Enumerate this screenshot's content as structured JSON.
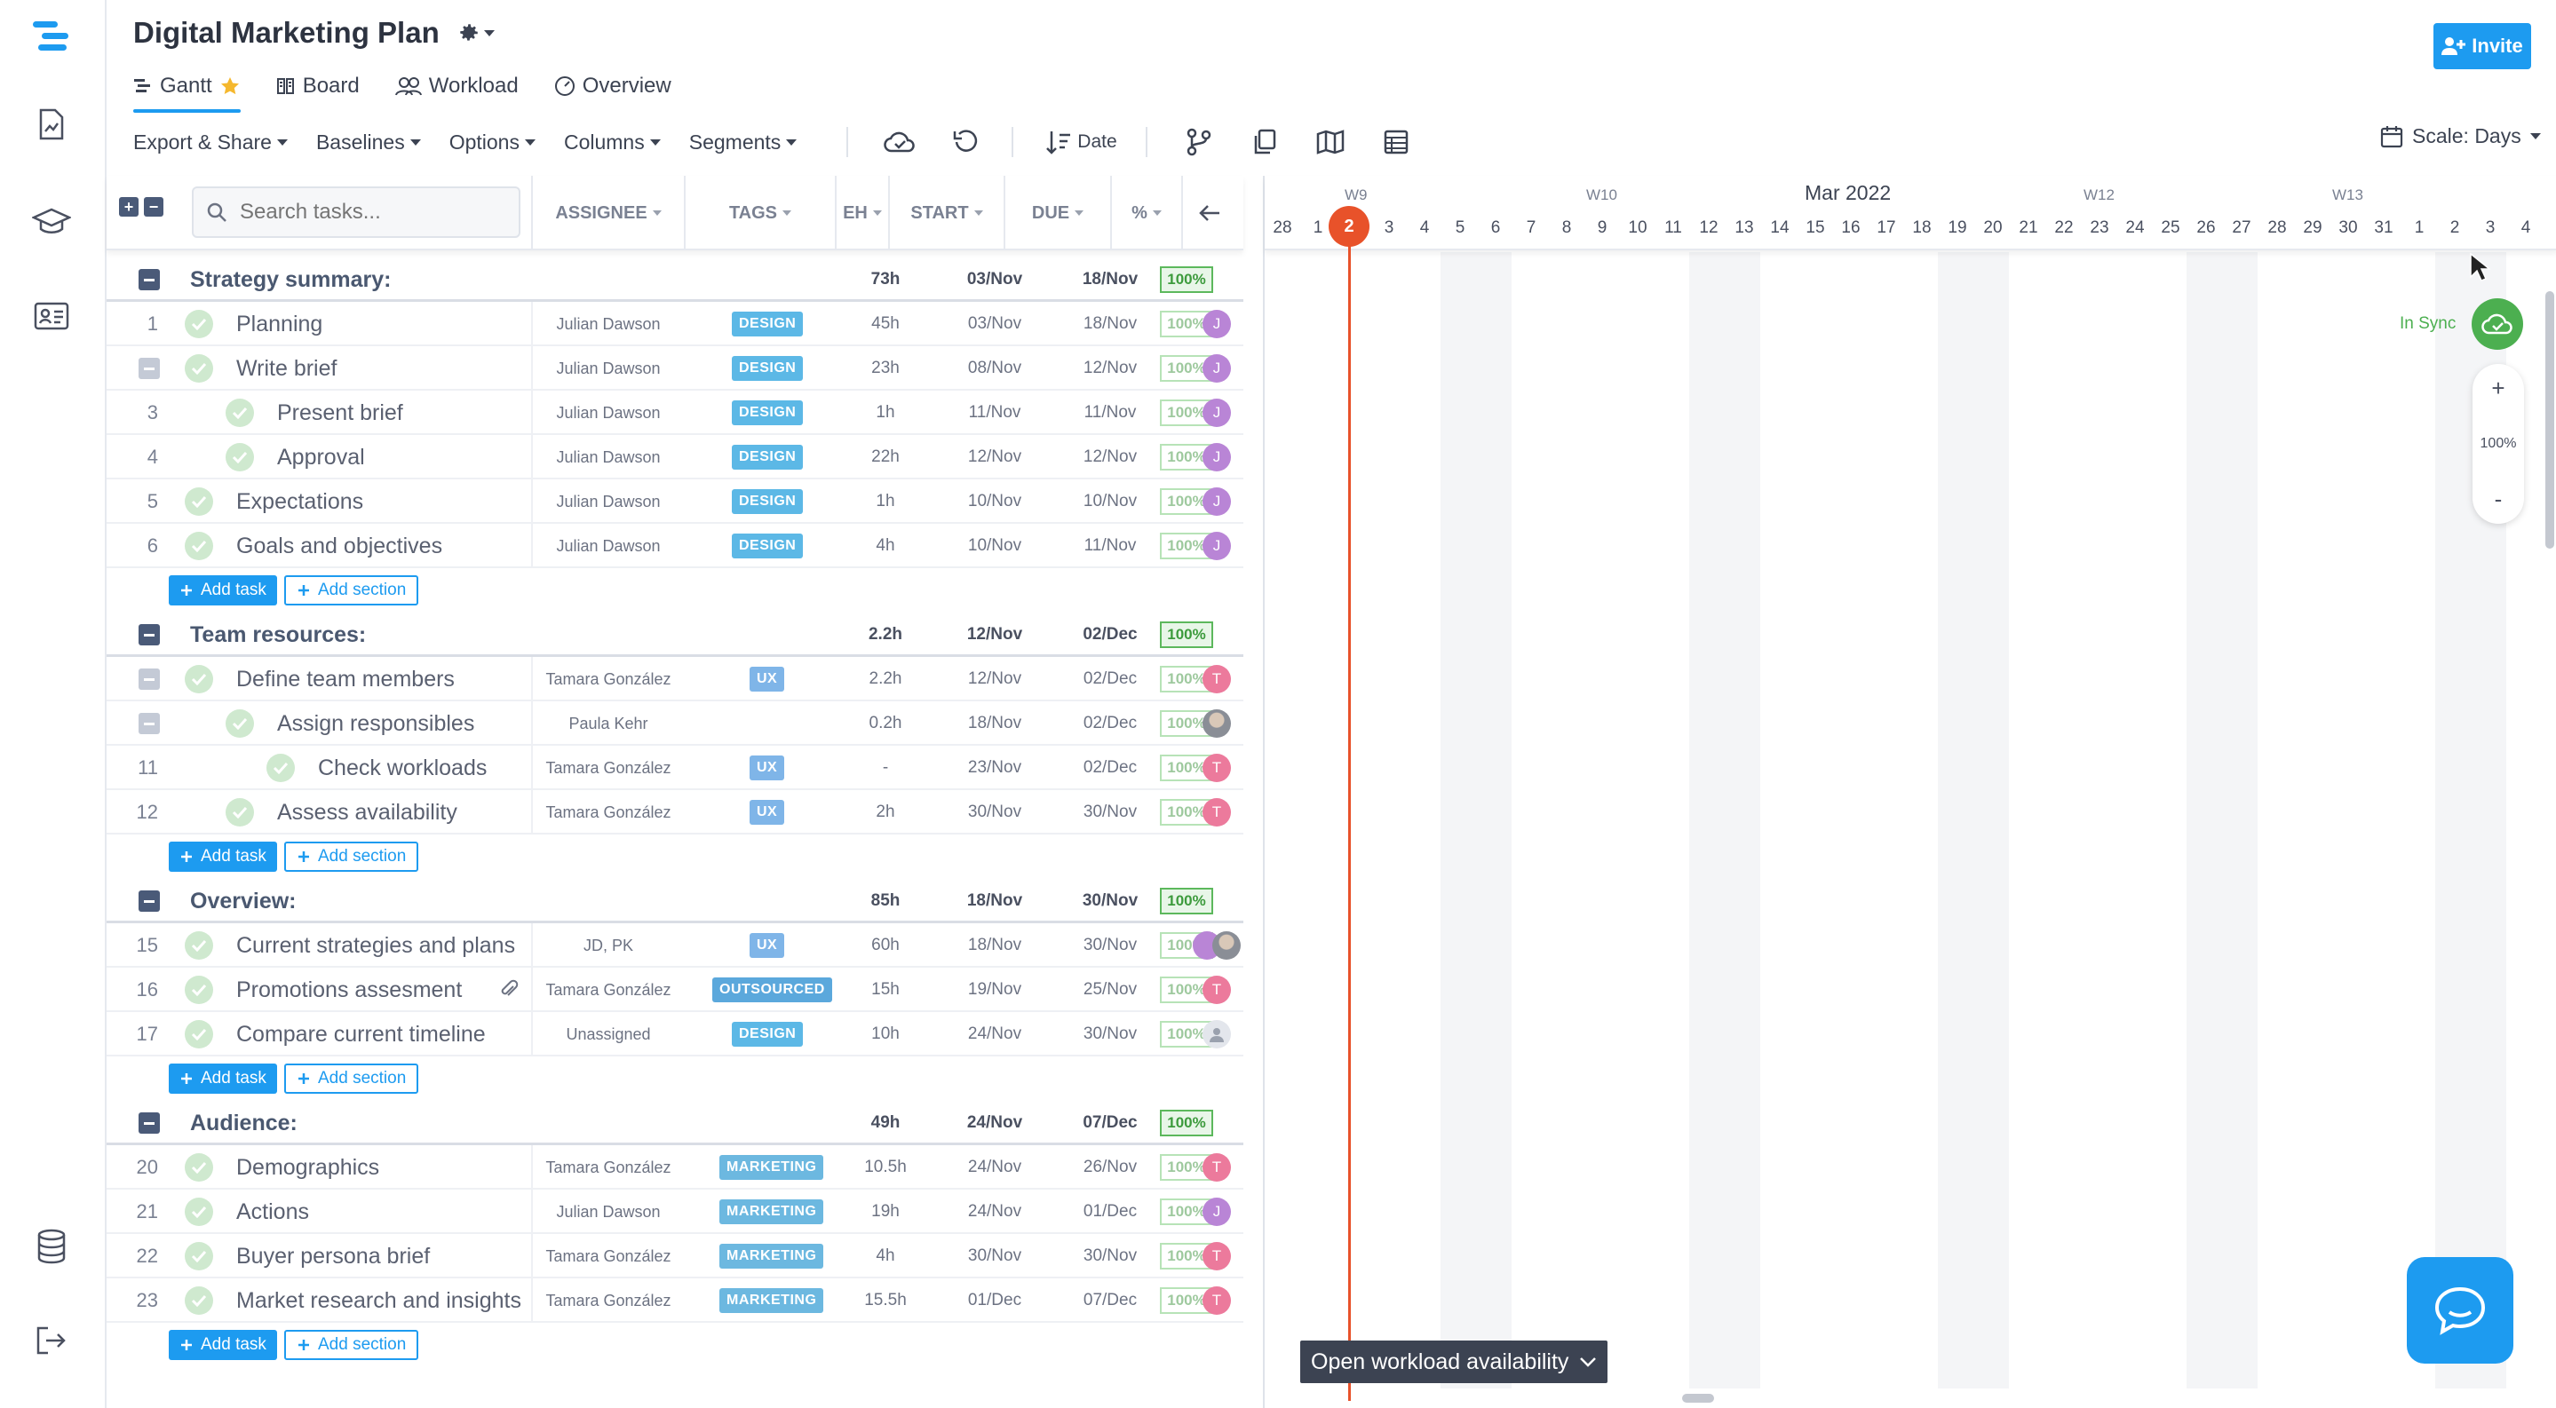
{
  "header": {
    "title": "Digital Marketing Plan",
    "invite_label": "Invite"
  },
  "views": [
    {
      "label": "Gantt",
      "active": true
    },
    {
      "label": "Board"
    },
    {
      "label": "Workload"
    },
    {
      "label": "Overview"
    }
  ],
  "toolbar": {
    "export": "Export & Share",
    "baselines": "Baselines",
    "options": "Options",
    "columns": "Columns",
    "segments": "Segments",
    "sort": "Date",
    "scale": "Scale: Days"
  },
  "grid_header": {
    "search_placeholder": "Search tasks...",
    "assignee": "ASSIGNEE",
    "tags": "TAGS",
    "eh": "EH",
    "start": "START",
    "due": "DUE",
    "pct": "%"
  },
  "add_task_label": "Add task",
  "add_section_label": "Add section",
  "sections": [
    {
      "name": "Strategy summary:",
      "eh": "73h",
      "start": "03/Nov",
      "due": "18/Nov",
      "pct": "100%",
      "tasks": [
        {
          "num": "1",
          "name": "Planning",
          "assignee": "Julian Dawson",
          "tag": "DESIGN",
          "eh": "45h",
          "start": "03/Nov",
          "due": "18/Nov",
          "pct": "100%",
          "avatar": "J"
        },
        {
          "num": "",
          "name": "Write brief",
          "assignee": "Julian Dawson",
          "tag": "DESIGN",
          "eh": "23h",
          "start": "08/Nov",
          "due": "12/Nov",
          "pct": "100%",
          "avatar": "J"
        },
        {
          "num": "3",
          "name": "Present brief",
          "assignee": "Julian Dawson",
          "tag": "DESIGN",
          "eh": "1h",
          "start": "11/Nov",
          "due": "11/Nov",
          "pct": "100%",
          "avatar": "J"
        },
        {
          "num": "4",
          "name": "Approval",
          "assignee": "Julian Dawson",
          "tag": "DESIGN",
          "eh": "22h",
          "start": "12/Nov",
          "due": "12/Nov",
          "pct": "100%",
          "avatar": "J"
        },
        {
          "num": "5",
          "name": "Expectations",
          "assignee": "Julian Dawson",
          "tag": "DESIGN",
          "eh": "1h",
          "start": "10/Nov",
          "due": "10/Nov",
          "pct": "100%",
          "avatar": "J"
        },
        {
          "num": "6",
          "name": "Goals and objectives",
          "assignee": "Julian Dawson",
          "tag": "DESIGN",
          "eh": "4h",
          "start": "10/Nov",
          "due": "11/Nov",
          "pct": "100%",
          "avatar": "J"
        }
      ]
    },
    {
      "name": "Team resources:",
      "eh": "2.2h",
      "start": "12/Nov",
      "due": "02/Dec",
      "pct": "100%",
      "tasks": [
        {
          "num": "",
          "name": "Define team members",
          "assignee": "Tamara González",
          "tag": "UX",
          "eh": "2.2h",
          "start": "12/Nov",
          "due": "02/Dec",
          "pct": "100%",
          "avatar": "T"
        },
        {
          "num": "",
          "name": "Assign responsibles",
          "assignee": "Paula Kehr",
          "tag": "",
          "eh": "0.2h",
          "start": "18/Nov",
          "due": "02/Dec",
          "pct": "100%",
          "avatar": ""
        },
        {
          "num": "11",
          "name": "Check workloads",
          "assignee": "Tamara González",
          "tag": "UX",
          "eh": "-",
          "start": "23/Nov",
          "due": "02/Dec",
          "pct": "100%",
          "avatar": "T"
        },
        {
          "num": "12",
          "name": "Assess availability",
          "assignee": "Tamara González",
          "tag": "UX",
          "eh": "2h",
          "start": "30/Nov",
          "due": "30/Nov",
          "pct": "100%",
          "avatar": "T"
        }
      ]
    },
    {
      "name": "Overview:",
      "eh": "85h",
      "start": "18/Nov",
      "due": "30/Nov",
      "pct": "100%",
      "tasks": [
        {
          "num": "15",
          "name": "Current strategies and plans",
          "assignee": "JD, PK",
          "tag": "UX",
          "eh": "60h",
          "start": "18/Nov",
          "due": "30/Nov",
          "pct": "100%",
          "avatar": ""
        },
        {
          "num": "16",
          "name": "Promotions assesment",
          "assignee": "Tamara González",
          "tag": "OUTSOURCED",
          "eh": "15h",
          "start": "19/Nov",
          "due": "25/Nov",
          "pct": "100%",
          "avatar": "T"
        },
        {
          "num": "17",
          "name": "Compare current timeline",
          "assignee": "Unassigned",
          "tag": "DESIGN",
          "eh": "10h",
          "start": "24/Nov",
          "due": "30/Nov",
          "pct": "100%",
          "avatar": ""
        }
      ]
    },
    {
      "name": "Audience:",
      "eh": "49h",
      "start": "24/Nov",
      "due": "07/Dec",
      "pct": "100%",
      "tasks": [
        {
          "num": "20",
          "name": "Demographics",
          "assignee": "Tamara González",
          "tag": "MARKETING",
          "eh": "10.5h",
          "start": "24/Nov",
          "due": "26/Nov",
          "pct": "100%",
          "avatar": "T"
        },
        {
          "num": "21",
          "name": "Actions",
          "assignee": "Julian Dawson",
          "tag": "MARKETING",
          "eh": "19h",
          "start": "24/Nov",
          "due": "01/Dec",
          "pct": "100%",
          "avatar": "J"
        },
        {
          "num": "22",
          "name": "Buyer persona brief",
          "assignee": "Tamara González",
          "tag": "MARKETING",
          "eh": "4h",
          "start": "30/Nov",
          "due": "30/Nov",
          "pct": "100%",
          "avatar": "T"
        },
        {
          "num": "23",
          "name": "Market research and insights",
          "assignee": "Tamara González",
          "tag": "MARKETING",
          "eh": "15.5h",
          "start": "01/Dec",
          "due": "07/Dec",
          "pct": "100%",
          "avatar": "T"
        }
      ]
    }
  ],
  "gantt": {
    "month": "Mar 2022",
    "weeks": [
      "W9",
      "W10",
      "W12",
      "W13"
    ],
    "days": [
      "28",
      "1",
      "2",
      "3",
      "4",
      "5",
      "6",
      "7",
      "8",
      "9",
      "10",
      "11",
      "12",
      "13",
      "14",
      "15",
      "16",
      "17",
      "18",
      "19",
      "20",
      "21",
      "22",
      "23",
      "24",
      "25",
      "26",
      "27",
      "28",
      "29",
      "30",
      "31",
      "1",
      "2",
      "3",
      "4"
    ],
    "today": "2",
    "sync_label": "In Sync",
    "zoom_level": "100%",
    "workload_button": "Open workload availability"
  }
}
